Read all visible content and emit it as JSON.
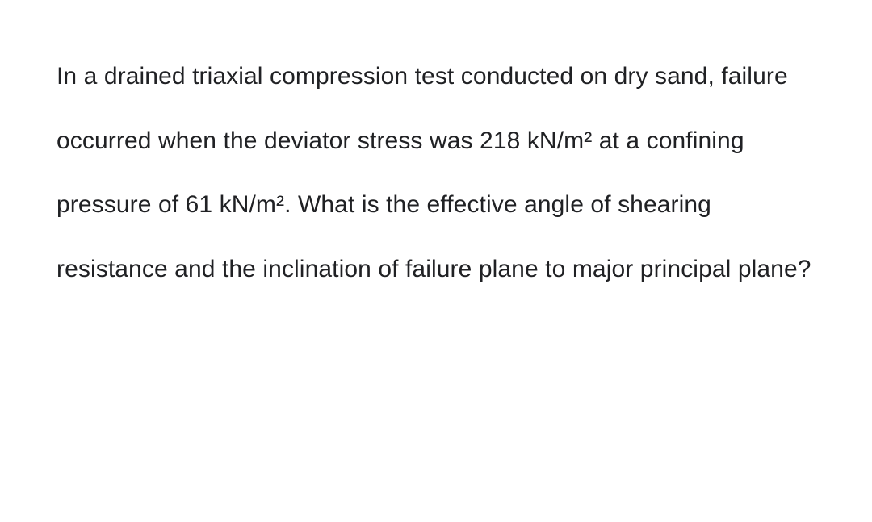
{
  "question": {
    "text": "In a drained triaxial compression test conducted on dry sand, failure occurred when the deviator stress was 218 kN/m² at a confining pressure of 61 kN/m². What is the effective angle of shearing resistance and the inclination of failure plane to major principal plane?",
    "font_size": 30,
    "line_height": 2.65,
    "text_color": "#202124",
    "background_color": "#ffffff",
    "font_family": "Arial"
  }
}
